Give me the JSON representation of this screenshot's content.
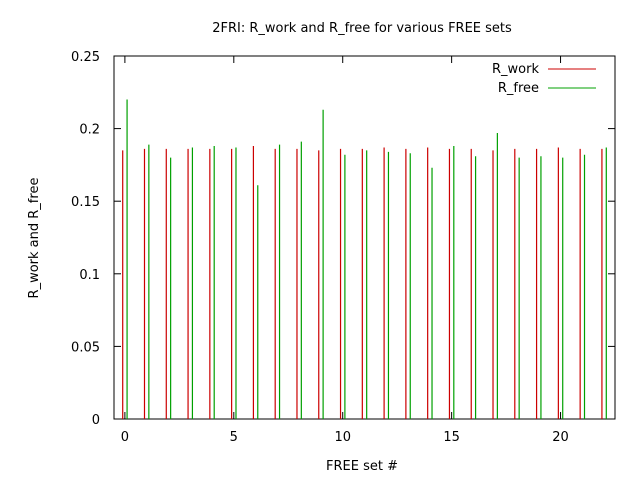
{
  "chart_data": {
    "type": "bar",
    "title": "2FRI: R_work and R_free for various FREE sets",
    "xlabel": "FREE set #",
    "ylabel": "R_work and R_free",
    "xlim": [
      -0.5,
      22.5
    ],
    "ylim": [
      0,
      0.25
    ],
    "xticks": [
      0,
      5,
      10,
      15,
      20
    ],
    "yticks": [
      0,
      0.05,
      0.1,
      0.15,
      0.2,
      0.25
    ],
    "ytick_labels": [
      "0",
      "0.05",
      "0.1",
      "0.15",
      "0.2",
      "0.25"
    ],
    "grid": false,
    "legend_position": "top-right",
    "x": [
      0,
      1,
      2,
      3,
      4,
      5,
      6,
      7,
      8,
      9,
      10,
      11,
      12,
      13,
      14,
      15,
      16,
      17,
      18,
      19,
      20,
      21,
      22
    ],
    "series": [
      {
        "name": "R_work",
        "color": "#cc0000",
        "offset": -0.1,
        "values": [
          0.185,
          0.186,
          0.186,
          0.186,
          0.186,
          0.186,
          0.188,
          0.186,
          0.186,
          0.185,
          0.186,
          0.186,
          0.187,
          0.186,
          0.187,
          0.186,
          0.186,
          0.185,
          0.186,
          0.186,
          0.187,
          0.186,
          0.186
        ]
      },
      {
        "name": "R_free",
        "color": "#00a000",
        "offset": 0.1,
        "values": [
          0.22,
          0.189,
          0.18,
          0.187,
          0.188,
          0.187,
          0.161,
          0.189,
          0.191,
          0.213,
          0.182,
          0.185,
          0.184,
          0.183,
          0.173,
          0.188,
          0.181,
          0.197,
          0.18,
          0.181,
          0.18,
          0.182,
          0.187
        ]
      }
    ]
  }
}
